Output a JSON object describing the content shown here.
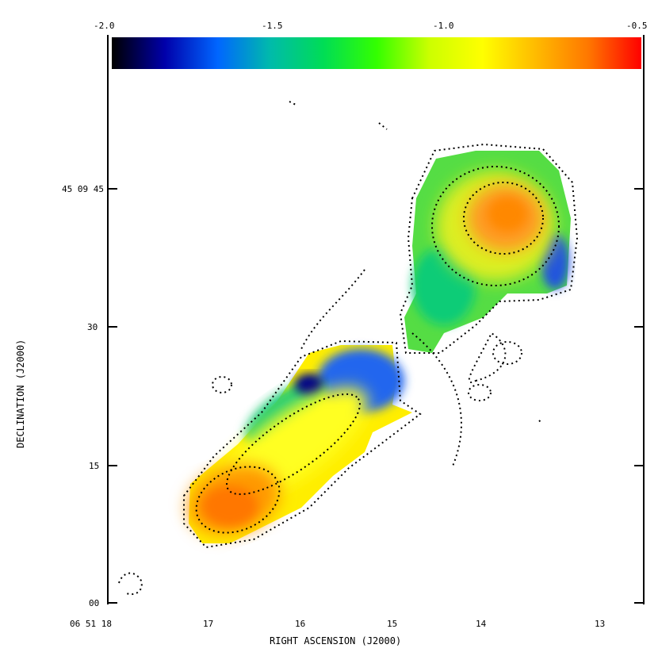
{
  "chart_data": {
    "type": "heatmap",
    "xlabel": "RIGHT ASCENSION (J2000)",
    "ylabel": "DECLINATION (J2000)",
    "x_ticks": [
      "06 51 18",
      "17",
      "16",
      "15",
      "14",
      "13"
    ],
    "y_ticks": [
      "45 09 45",
      "30",
      "15",
      "00"
    ],
    "colorbar": {
      "ticks": [
        "-2.0",
        "-1.5",
        "-1.0",
        "-0.5"
      ],
      "range": [
        -2.0,
        -0.5
      ],
      "palette": [
        "#000000",
        "#0000aa",
        "#0066ff",
        "#00bbaa",
        "#00dd55",
        "#33ff00",
        "#ccff00",
        "#ffff00",
        "#ffbb00",
        "#ff7700",
        "#ff0000"
      ]
    },
    "grid": false,
    "legend": "none",
    "regions": [
      {
        "name": "southeast-lobe-head",
        "level": -0.65
      },
      {
        "name": "southeast-lobe-body",
        "level": -0.95
      },
      {
        "name": "southeast-lobe-edge",
        "level": -1.45
      },
      {
        "name": "northwest-lobe-core",
        "level": -0.7
      },
      {
        "name": "northwest-lobe-body",
        "level": -1.05
      },
      {
        "name": "northwest-lobe-edge",
        "level": -1.35
      }
    ]
  }
}
